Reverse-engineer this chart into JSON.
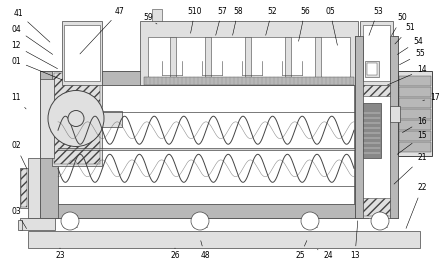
{
  "fig_width": 4.43,
  "fig_height": 2.66,
  "dpi": 100,
  "bg_color": "#ffffff",
  "lc": "#444444",
  "fl": "#e0e0e0",
  "fm": "#b8b8b8",
  "fd": "#888888",
  "fw": "#ffffff",
  "fhatch": "#d0d0d0"
}
